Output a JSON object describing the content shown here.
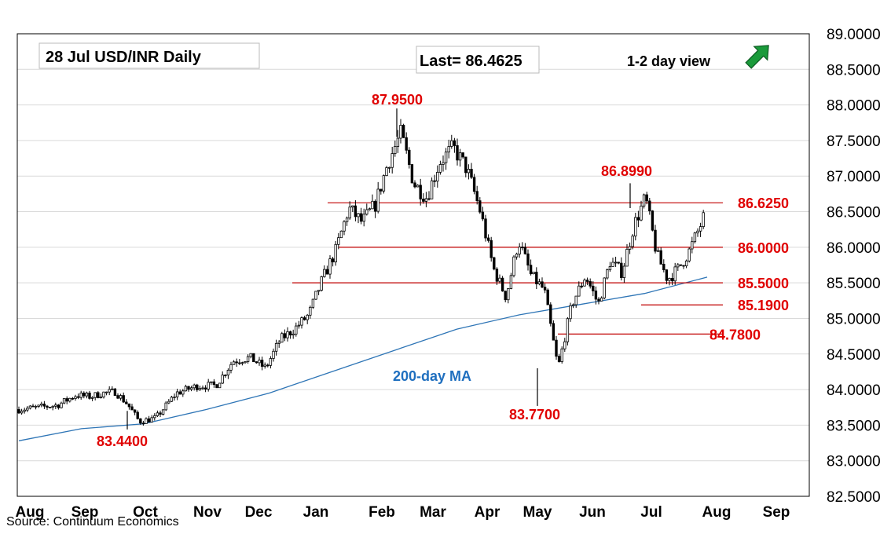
{
  "header": {
    "title": "28 Jul  USD/INR  Daily",
    "last": "Last= 86.4625",
    "view": "1-2 day view",
    "view_icon": "arrow-up-right-icon"
  },
  "source": "Source: Continuum Economics",
  "colors": {
    "candle": "#000000",
    "level": "#c00000",
    "label": "#e00000",
    "ma": "#2e75b6",
    "ma_label": "#1f6fbf",
    "grid": "#d9d9d9",
    "arrow_fill": "#1a9a3a"
  },
  "chart_data": {
    "type": "candlestick",
    "title": "28 Jul  USD/INR  Daily",
    "ylim": [
      82.5,
      89.0
    ],
    "y_ticks": [
      "89.0000",
      "88.5000",
      "88.0000",
      "87.5000",
      "87.0000",
      "86.5000",
      "86.0000",
      "85.5000",
      "85.0000",
      "84.5000",
      "84.0000",
      "83.5000",
      "83.0000",
      "82.5000"
    ],
    "x_months": [
      "Aug",
      "Sep",
      "Oct",
      "Nov",
      "Dec",
      "Jan",
      "Feb",
      "Mar",
      "Apr",
      "May",
      "Jun",
      "Jul",
      "Aug",
      "Sep"
    ],
    "grid": true,
    "last": 86.4625,
    "anchors": [
      {
        "month": "Aug",
        "v": 83.72
      },
      {
        "month": "Aug",
        "v": 83.78
      },
      {
        "month": "Aug",
        "v": 83.92
      },
      {
        "month": "Sep",
        "v": 83.9
      },
      {
        "month": "Sep",
        "v": 83.95
      },
      {
        "month": "Sep",
        "v": 83.97
      },
      {
        "month": "Sep",
        "v": 83.8
      },
      {
        "month": "Sep",
        "v": 83.55
      },
      {
        "month": "Oct",
        "v": 83.6
      },
      {
        "month": "Oct",
        "v": 83.95
      },
      {
        "month": "Oct",
        "v": 84.05
      },
      {
        "month": "Nov",
        "v": 84.06
      },
      {
        "month": "Nov",
        "v": 84.4
      },
      {
        "month": "Nov",
        "v": 84.45
      },
      {
        "month": "Dec",
        "v": 84.3
      },
      {
        "month": "Dec",
        "v": 84.7
      },
      {
        "month": "Dec",
        "v": 84.85
      },
      {
        "month": "Dec",
        "v": 85.05
      },
      {
        "month": "Jan",
        "v": 85.55
      },
      {
        "month": "Jan",
        "v": 85.95
      },
      {
        "month": "Jan",
        "v": 86.55
      },
      {
        "month": "Jan",
        "v": 86.35
      },
      {
        "month": "Jan",
        "v": 86.6
      },
      {
        "month": "Feb",
        "v": 87.2
      },
      {
        "month": "Feb",
        "v": 87.6
      },
      {
        "month": "Feb",
        "v": 86.9
      },
      {
        "month": "Feb",
        "v": 86.7
      },
      {
        "month": "Mar",
        "v": 87.2
      },
      {
        "month": "Mar",
        "v": 87.4
      },
      {
        "month": "Mar",
        "v": 87.1
      },
      {
        "month": "Mar",
        "v": 86.5
      },
      {
        "month": "Apr",
        "v": 85.7
      },
      {
        "month": "Apr",
        "v": 85.3
      },
      {
        "month": "Apr",
        "v": 86.1
      },
      {
        "month": "Apr",
        "v": 85.6
      },
      {
        "month": "May",
        "v": 85.4
      },
      {
        "month": "May",
        "v": 84.3
      },
      {
        "month": "May",
        "v": 85.2
      },
      {
        "month": "May",
        "v": 85.6
      },
      {
        "month": "Jun",
        "v": 85.2
      },
      {
        "month": "Jun",
        "v": 85.8
      },
      {
        "month": "Jun",
        "v": 85.65
      },
      {
        "month": "Jun",
        "v": 86.3
      },
      {
        "month": "Jun",
        "v": 86.7
      },
      {
        "month": "Jul",
        "v": 85.9
      },
      {
        "month": "Jul",
        "v": 85.55
      },
      {
        "month": "Jul",
        "v": 85.7
      },
      {
        "month": "Jul",
        "v": 85.95
      },
      {
        "month": "Jul",
        "v": 86.3
      },
      {
        "month": "Jul",
        "v": 86.46
      }
    ],
    "ma_200": [
      83.28,
      83.45,
      83.52,
      83.72,
      83.95,
      84.25,
      84.55,
      84.85,
      85.05,
      85.2,
      85.35,
      85.58
    ],
    "ma_label": "200-day MA",
    "levels": [
      {
        "label": "86.6250",
        "v": 86.625
      },
      {
        "label": "86.0000",
        "v": 86.0
      },
      {
        "label": "85.5000",
        "v": 85.5
      },
      {
        "label": "85.1900",
        "v": 85.19
      },
      {
        "label": "84.7800",
        "v": 84.78
      }
    ],
    "annotations": [
      {
        "label": "87.9500",
        "v": 87.95
      },
      {
        "label": "86.8990",
        "v": 86.899
      },
      {
        "label": "83.7700",
        "v": 83.77
      },
      {
        "label": "83.4400",
        "v": 83.44
      }
    ]
  }
}
